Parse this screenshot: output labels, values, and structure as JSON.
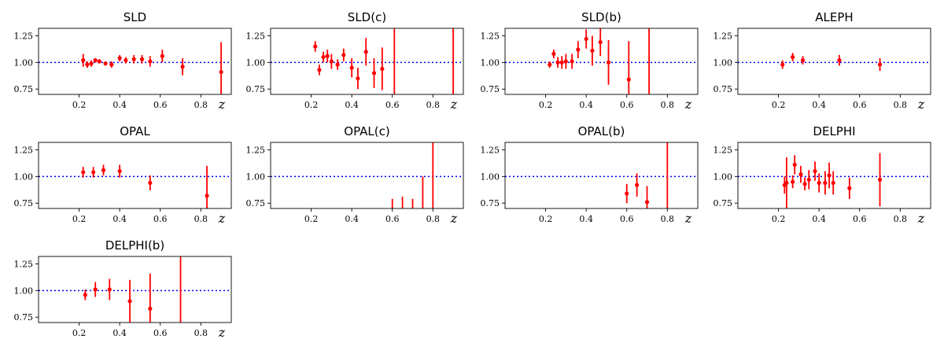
{
  "chart_data": [
    {
      "type": "scatter",
      "title": "SLD",
      "xlabel": "z",
      "ylabel": "",
      "xlim": [
        0,
        0.95
      ],
      "ylim": [
        0.7,
        1.32
      ],
      "xticks": [
        0.2,
        0.4,
        0.6,
        0.8
      ],
      "yticks": [
        0.75,
        1.0,
        1.25
      ],
      "reference_line": 1.0,
      "grid": false,
      "series": [
        {
          "x": [
            0.22,
            0.24,
            0.26,
            0.28,
            0.3,
            0.33,
            0.36,
            0.4,
            0.43,
            0.47,
            0.51,
            0.55,
            0.61,
            0.71,
            0.9
          ],
          "y": [
            1.02,
            0.98,
            0.99,
            1.02,
            1.01,
            0.99,
            0.98,
            1.04,
            1.02,
            1.03,
            1.03,
            1.01,
            1.06,
            0.96,
            0.91
          ],
          "err": [
            0.06,
            0.03,
            0.03,
            0.02,
            0.02,
            0.02,
            0.03,
            0.03,
            0.03,
            0.04,
            0.04,
            0.05,
            0.06,
            0.08,
            0.28
          ]
        }
      ]
    },
    {
      "type": "scatter",
      "title": "SLD(c)",
      "xlabel": "z",
      "ylabel": "",
      "xlim": [
        0,
        0.95
      ],
      "ylim": [
        0.7,
        1.32
      ],
      "xticks": [
        0.2,
        0.4,
        0.6,
        0.8
      ],
      "yticks": [
        0.75,
        1.0,
        1.25
      ],
      "reference_line": 1.0,
      "grid": false,
      "series": [
        {
          "x": [
            0.22,
            0.24,
            0.26,
            0.28,
            0.3,
            0.33,
            0.36,
            0.4,
            0.43,
            0.47,
            0.51,
            0.55,
            0.61,
            0.9
          ],
          "y": [
            1.15,
            0.93,
            1.05,
            1.06,
            1.01,
            0.98,
            1.07,
            0.95,
            0.85,
            1.1,
            0.9,
            0.94,
            null,
            null
          ],
          "err": [
            0.05,
            0.05,
            0.05,
            0.06,
            0.07,
            0.05,
            0.06,
            0.09,
            0.1,
            0.13,
            0.14,
            0.2,
            0.3,
            0.8
          ]
        }
      ]
    },
    {
      "type": "scatter",
      "title": "SLD(b)",
      "xlabel": "z",
      "ylabel": "",
      "xlim": [
        0,
        0.95
      ],
      "ylim": [
        0.7,
        1.32
      ],
      "xticks": [
        0.2,
        0.4,
        0.6,
        0.8
      ],
      "yticks": [
        0.75,
        1.0,
        1.25
      ],
      "reference_line": 1.0,
      "grid": false,
      "series": [
        {
          "x": [
            0.22,
            0.24,
            0.26,
            0.28,
            0.3,
            0.33,
            0.36,
            0.4,
            0.43,
            0.47,
            0.51,
            0.61,
            0.71
          ],
          "y": [
            0.98,
            1.08,
            1.0,
            1.0,
            1.01,
            1.01,
            1.12,
            1.22,
            1.11,
            1.19,
            1.0,
            0.84,
            null
          ],
          "err": [
            0.03,
            0.04,
            0.05,
            0.06,
            0.07,
            0.07,
            0.08,
            0.09,
            0.14,
            0.13,
            0.21,
            0.36,
            0.8
          ]
        }
      ]
    },
    {
      "type": "scatter",
      "title": "ALEPH",
      "xlabel": "z",
      "ylabel": "",
      "xlim": [
        0,
        0.95
      ],
      "ylim": [
        0.7,
        1.32
      ],
      "xticks": [
        0.2,
        0.4,
        0.6,
        0.8
      ],
      "yticks": [
        0.75,
        1.0,
        1.25
      ],
      "reference_line": 1.0,
      "grid": false,
      "series": [
        {
          "x": [
            0.22,
            0.27,
            0.32,
            0.5,
            0.7
          ],
          "y": [
            0.98,
            1.05,
            1.02,
            1.02,
            0.98
          ],
          "err": [
            0.04,
            0.04,
            0.04,
            0.05,
            0.06
          ]
        }
      ]
    },
    {
      "type": "scatter",
      "title": "OPAL",
      "xlabel": "z",
      "ylabel": "",
      "xlim": [
        0,
        0.95
      ],
      "ylim": [
        0.7,
        1.32
      ],
      "xticks": [
        0.2,
        0.4,
        0.6,
        0.8
      ],
      "yticks": [
        0.75,
        1.0,
        1.25
      ],
      "reference_line": 1.0,
      "grid": false,
      "series": [
        {
          "x": [
            0.22,
            0.27,
            0.32,
            0.4,
            0.55,
            0.83
          ],
          "y": [
            1.04,
            1.04,
            1.06,
            1.05,
            0.94,
            0.82
          ],
          "err": [
            0.05,
            0.05,
            0.05,
            0.06,
            0.07,
            0.28
          ]
        }
      ]
    },
    {
      "type": "scatter",
      "title": "OPAL(c)",
      "xlabel": "z",
      "ylabel": "",
      "xlim": [
        0,
        0.95
      ],
      "ylim": [
        0.7,
        1.32
      ],
      "xticks": [
        0.2,
        0.4,
        0.6,
        0.8
      ],
      "yticks": [
        0.75,
        1.0,
        1.25
      ],
      "reference_line": 1.0,
      "grid": false,
      "series": [
        {
          "x": [
            0.6,
            0.65,
            0.7,
            0.75,
            0.8
          ],
          "y": [
            null,
            null,
            null,
            null,
            null
          ],
          "err": [
            null,
            null,
            null,
            null,
            null
          ],
          "visible_range": [
            [
              0.7,
              0.79
            ],
            [
              0.7,
              0.81
            ],
            [
              0.7,
              0.79
            ],
            [
              0.7,
              1.0
            ],
            [
              0.7,
              1.32
            ]
          ]
        }
      ]
    },
    {
      "type": "scatter",
      "title": "OPAL(b)",
      "xlabel": "z",
      "ylabel": "",
      "xlim": [
        0,
        0.95
      ],
      "ylim": [
        0.7,
        1.32
      ],
      "xticks": [
        0.2,
        0.4,
        0.6,
        0.8
      ],
      "yticks": [
        0.75,
        1.0,
        1.25
      ],
      "reference_line": 1.0,
      "grid": false,
      "series": [
        {
          "x": [
            0.6,
            0.65,
            0.7,
            0.8
          ],
          "y": [
            0.84,
            0.92,
            0.76,
            null
          ],
          "err": [
            0.09,
            0.11,
            0.15,
            0.8
          ]
        }
      ]
    },
    {
      "type": "scatter",
      "title": "DELPHI",
      "xlabel": "z",
      "ylabel": "",
      "xlim": [
        0,
        0.95
      ],
      "ylim": [
        0.7,
        1.32
      ],
      "xticks": [
        0.2,
        0.4,
        0.6,
        0.8
      ],
      "yticks": [
        0.75,
        1.0,
        1.25
      ],
      "reference_line": 1.0,
      "grid": false,
      "series": [
        {
          "x": [
            0.23,
            0.24,
            0.27,
            0.28,
            0.31,
            0.33,
            0.35,
            0.38,
            0.4,
            0.43,
            0.45,
            0.47,
            0.55,
            0.7
          ],
          "y": [
            0.92,
            0.94,
            0.95,
            1.11,
            1.02,
            0.93,
            0.97,
            1.05,
            0.94,
            0.94,
            1.01,
            0.94,
            0.89,
            0.97
          ],
          "err": [
            0.08,
            0.24,
            0.06,
            0.09,
            0.08,
            0.06,
            0.09,
            0.09,
            0.09,
            0.11,
            0.12,
            0.11,
            0.1,
            0.25
          ]
        }
      ]
    },
    {
      "type": "scatter",
      "title": "DELPHI(b)",
      "xlabel": "z",
      "ylabel": "",
      "xlim": [
        0,
        0.95
      ],
      "ylim": [
        0.7,
        1.32
      ],
      "xticks": [
        0.2,
        0.4,
        0.6,
        0.8
      ],
      "yticks": [
        0.75,
        1.0,
        1.25
      ],
      "reference_line": 1.0,
      "grid": false,
      "series": [
        {
          "x": [
            0.23,
            0.28,
            0.35,
            0.45,
            0.55,
            0.7
          ],
          "y": [
            0.96,
            1.01,
            1.01,
            0.9,
            0.83,
            null
          ],
          "err": [
            0.05,
            0.07,
            0.1,
            0.2,
            0.33,
            0.8
          ]
        }
      ]
    }
  ],
  "style": {
    "point_color": "#ff0000",
    "reference_color": "#0000ff",
    "axis_color": "#000000"
  }
}
